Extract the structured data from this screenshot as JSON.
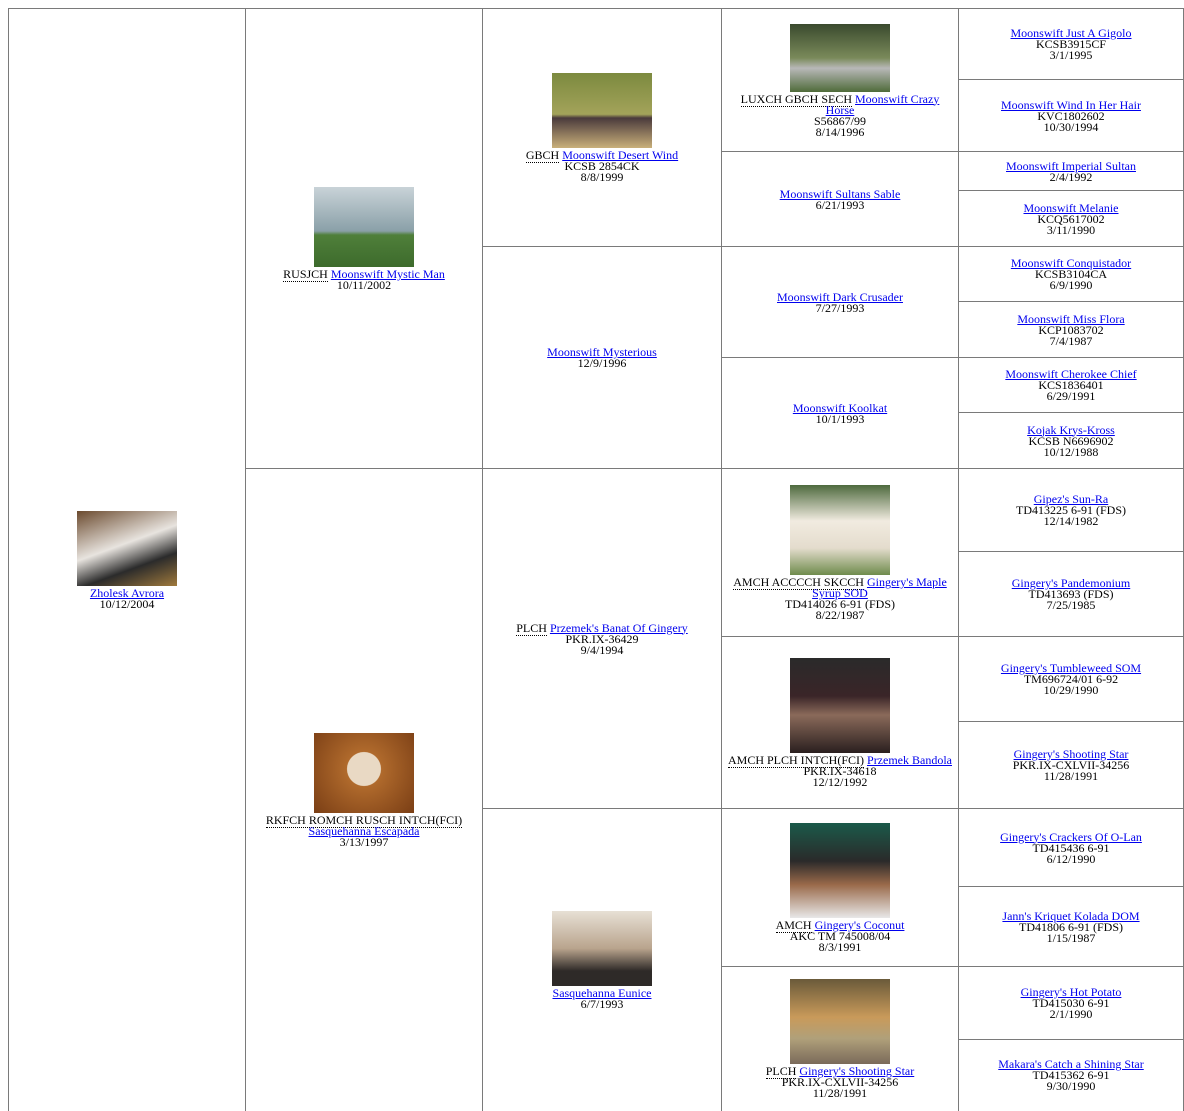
{
  "generations": [
    [
      {
        "name": "Zholesk Avrora",
        "date": "10/12/2004"
      }
    ],
    [
      {
        "titles": "RUSJCH",
        "name": "Moonswift Mystic Man",
        "date": "10/11/2002"
      },
      {
        "titles": "RKFCH ROMCH RUSCH INTCH(FCI)",
        "name": "Sasquehanna Escapada",
        "date": "3/13/1997"
      }
    ],
    [
      {
        "titles": "GBCH",
        "name": "Moonswift Desert Wind",
        "registration": "KCSB 2854CK",
        "date": "8/8/1999"
      },
      {
        "name": "Moonswift Mysterious",
        "date": "12/9/1996"
      },
      {
        "titles": "PLCH",
        "name": "Przemek's Banat Of Gingery",
        "registration": "PKR.IX-36429",
        "date": "9/4/1994"
      },
      {
        "name": "Sasquehanna Eunice",
        "date": "6/7/1993"
      }
    ],
    [
      {
        "titles": "LUXCH GBCH SECH",
        "name": "Moonswift Crazy Horse",
        "registration": "S56867/99",
        "date": "8/14/1996"
      },
      {
        "name": "Moonswift Sultans Sable",
        "date": "6/21/1993"
      },
      {
        "name": "Moonswift Dark Crusader",
        "date": "7/27/1993"
      },
      {
        "name": "Moonswift Koolkat",
        "date": "10/1/1993"
      },
      {
        "titles": "AMCH ACCCCH SKCCH",
        "name": "Gingery's Maple Syrup SOD",
        "registration": "TD414026 6-91 (FDS)",
        "date": "8/22/1987"
      },
      {
        "titles": "AMCH PLCH INTCH(FCI)",
        "name": "Przemek Bandola",
        "registration": "PKR.IX-34618",
        "date": "12/12/1992"
      },
      {
        "titles": "AMCH",
        "name": "Gingery's Coconut",
        "registration": "AKC TM 745008/04",
        "date": "8/3/1991"
      },
      {
        "titles": "PLCH",
        "name": "Gingery's Shooting Star",
        "registration": "PKR.IX-CXLVII-34256",
        "date": "11/28/1991"
      }
    ],
    [
      {
        "name": "Moonswift Just A Gigolo",
        "registration": "KCSB3915CF",
        "date": "3/1/1995"
      },
      {
        "name": "Moonswift Wind In Her Hair",
        "registration": "KVC1802602",
        "date": "10/30/1994"
      },
      {
        "name": "Moonswift Imperial Sultan",
        "date": "2/4/1992"
      },
      {
        "name": "Moonswift Melanie",
        "registration": "KCQ5617002",
        "date": "3/11/1990"
      },
      {
        "name": "Moonswift Conquistador",
        "registration": "KCSB3104CA",
        "date": "6/9/1990"
      },
      {
        "name": "Moonswift Miss Flora",
        "registration": "KCP1083702",
        "date": "7/4/1987"
      },
      {
        "name": "Moonswift Cherokee Chief",
        "registration": "KCS1836401",
        "date": "6/29/1991"
      },
      {
        "name": "Kojak Krys-Kross",
        "registration": "KCSB N6696902",
        "date": "10/12/1988"
      },
      {
        "name": "Gipez's Sun-Ra",
        "registration": "TD413225 6-91 (FDS)",
        "date": "12/14/1982"
      },
      {
        "name": "Gingery's Pandemonium",
        "registration": "TD413693 (FDS)",
        "date": "7/25/1985"
      },
      {
        "name": "Gingery's Tumbleweed SOM",
        "registration": "TM696724/01 6-92",
        "date": "10/29/1990"
      },
      {
        "name": "Gingery's Shooting Star",
        "registration": "PKR.IX-CXLVII-34256",
        "date": "11/28/1991"
      },
      {
        "name": "Gingery's Crackers Of O-Lan",
        "registration": "TD415436 6-91",
        "date": "6/12/1990"
      },
      {
        "name": "Jann's Kriquet Kolada DOM",
        "registration": "TD41806 6-91 (FDS)",
        "date": "1/15/1987"
      },
      {
        "name": "Gingery's Hot Potato",
        "registration": "TD415030 6-91",
        "date": "2/1/1990"
      },
      {
        "name": "Makara's Catch a Shining Star",
        "registration": "TD415362 6-91",
        "date": "9/30/1990"
      }
    ]
  ]
}
